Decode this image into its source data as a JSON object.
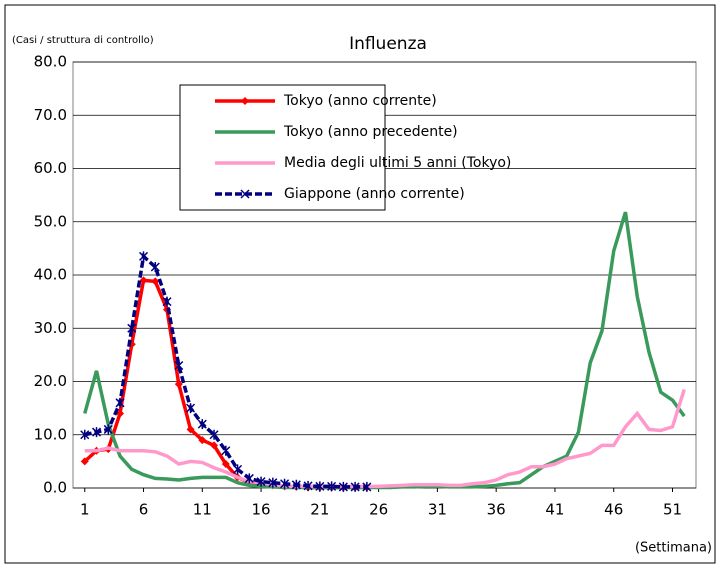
{
  "chart_data": {
    "type": "line",
    "title": "Influenza",
    "y_label": "(Casi / struttura di controllo)",
    "x_label": "(Settimana)",
    "x": [
      1,
      2,
      3,
      4,
      5,
      6,
      7,
      8,
      9,
      10,
      11,
      12,
      13,
      14,
      15,
      16,
      17,
      18,
      19,
      20,
      21,
      22,
      23,
      24,
      25,
      26,
      27,
      28,
      29,
      30,
      31,
      32,
      33,
      34,
      35,
      36,
      37,
      38,
      39,
      40,
      41,
      42,
      43,
      44,
      45,
      46,
      47,
      48,
      49,
      50,
      51,
      52
    ],
    "xlim": [
      0,
      53
    ],
    "xticks": [
      1,
      6,
      11,
      16,
      21,
      26,
      31,
      36,
      41,
      46,
      51
    ],
    "ylim": [
      0,
      80
    ],
    "yticks": [
      {
        "value": 0,
        "label": "0.0"
      },
      {
        "value": 10,
        "label": "10.0"
      },
      {
        "value": 20,
        "label": "20.0"
      },
      {
        "value": 30,
        "label": "30.0"
      },
      {
        "value": 40,
        "label": "40.0"
      },
      {
        "value": 50,
        "label": "50.0"
      },
      {
        "value": 60,
        "label": "60.0"
      },
      {
        "value": 70,
        "label": "70.0"
      },
      {
        "value": 80,
        "label": "80.0"
      }
    ],
    "grid": true,
    "series": [
      {
        "name": "Tokyo (anno corrente)",
        "color": "#ff0000",
        "marker": "diamond",
        "values": [
          5,
          7,
          7.3,
          14,
          27,
          39,
          38.8,
          33.5,
          19.5,
          11,
          9,
          8,
          4.5,
          2,
          1,
          0.6,
          0.5,
          0.3,
          0.2,
          0.1,
          0.1,
          0.1,
          0.1,
          0.1,
          0.1,
          null,
          null,
          null,
          null,
          null,
          null,
          null,
          null,
          null,
          null,
          null,
          null,
          null,
          null,
          null,
          null,
          null,
          null,
          null,
          null,
          null,
          null,
          null,
          null,
          null,
          null,
          null
        ]
      },
      {
        "name": "Tokyo (anno precedente)",
        "color": "#3a9a5b",
        "values": [
          14,
          22,
          12,
          6,
          3.5,
          2.5,
          1.8,
          1.7,
          1.5,
          1.8,
          2,
          2,
          2,
          1,
          0.5,
          0.3,
          0.2,
          0.1,
          0.1,
          0.1,
          0.1,
          0.1,
          0.1,
          0.1,
          0.1,
          0.1,
          0.1,
          0.2,
          0.2,
          0.3,
          0.3,
          0.2,
          0.2,
          0.2,
          0.3,
          0.5,
          0.8,
          1,
          2.5,
          4,
          5,
          6,
          10.5,
          23.5,
          29.5,
          44.5,
          51.8,
          36,
          25.5,
          18,
          16.5,
          13.5
        ]
      },
      {
        "name": "Media degli ultimi 5 anni (Tokyo)",
        "color": "#ff99cc",
        "values": [
          7,
          7,
          7.5,
          7,
          7,
          7,
          6.8,
          6,
          4.5,
          5,
          4.8,
          3.8,
          3,
          2,
          1.2,
          1,
          0.6,
          0.4,
          0.3,
          0.3,
          0.3,
          0.3,
          0.3,
          0.3,
          0.3,
          0.3,
          0.4,
          0.5,
          0.6,
          0.6,
          0.6,
          0.5,
          0.5,
          0.8,
          1,
          1.5,
          2.5,
          3,
          4,
          4,
          4.5,
          5.5,
          6,
          6.5,
          8,
          8,
          11.5,
          14,
          11,
          10.8,
          11.5,
          18.5
        ]
      },
      {
        "name": "Giappone (anno corrente)",
        "color": "#000080",
        "marker": "cross",
        "dash": true,
        "values": [
          10,
          10.5,
          11,
          16,
          30,
          43.5,
          41.5,
          35,
          23,
          15,
          12,
          10,
          7,
          3.5,
          1.8,
          1.2,
          1,
          0.8,
          0.6,
          0.4,
          0.3,
          0.3,
          0.2,
          0.2,
          0.2,
          null,
          null,
          null,
          null,
          null,
          null,
          null,
          null,
          null,
          null,
          null,
          null,
          null,
          null,
          null,
          null,
          null,
          null,
          null,
          null,
          null,
          null,
          null,
          null,
          null,
          null,
          null
        ]
      }
    ]
  }
}
